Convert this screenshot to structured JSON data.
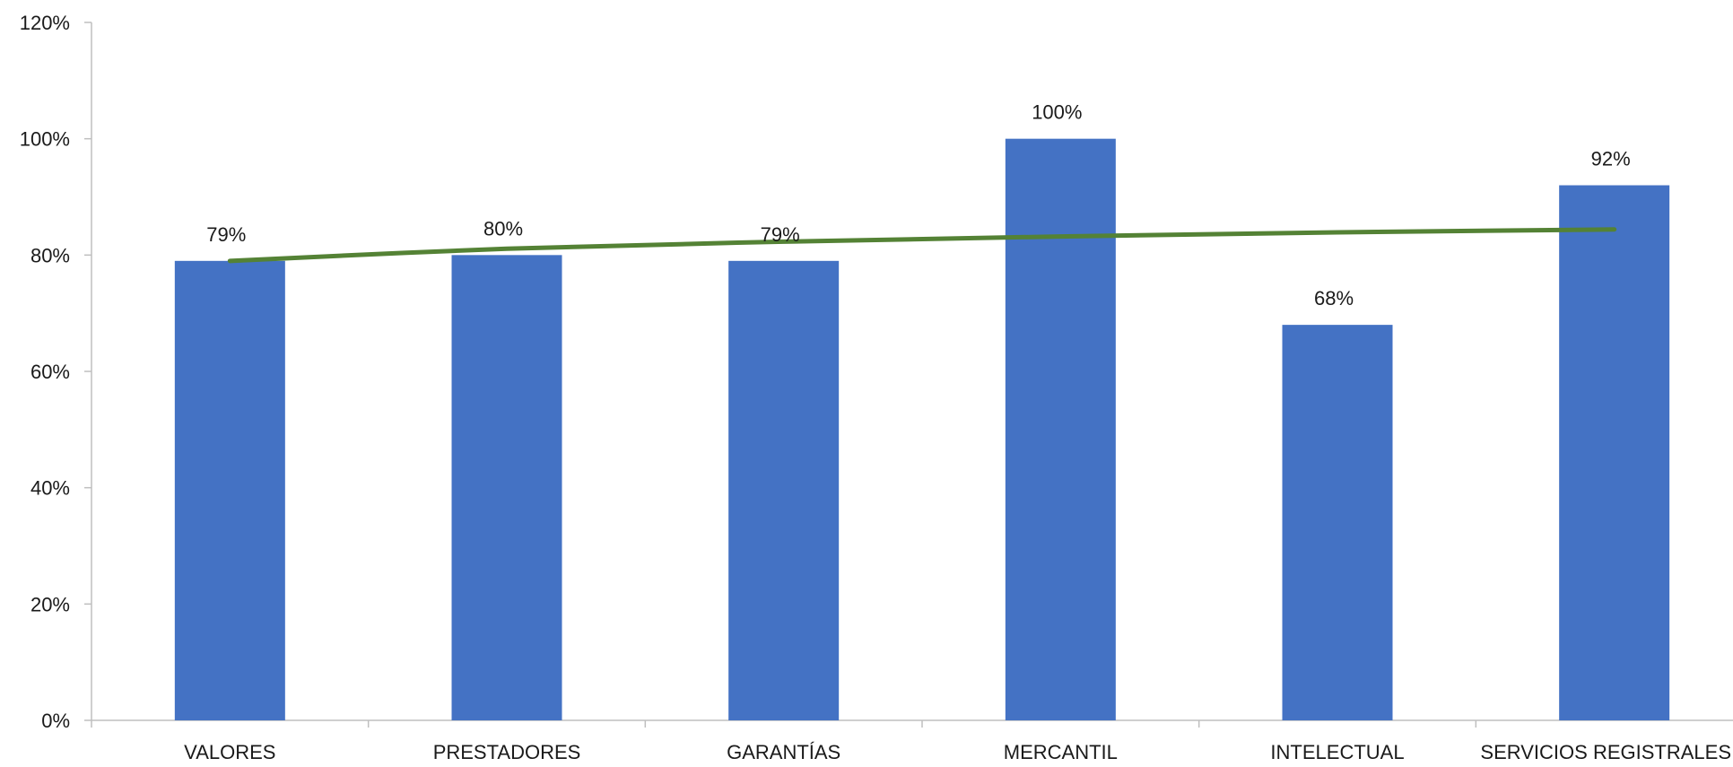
{
  "chart_data": {
    "type": "bar",
    "title": "",
    "xlabel": "",
    "ylabel": "",
    "categories": [
      "VALORES",
      "PRESTADORES",
      "GARANTÍAS",
      "MERCANTIL",
      "INTELECTUAL",
      "SERVICIOS REGISTRALES"
    ],
    "series": [
      {
        "values": [
          79,
          80,
          79,
          100,
          68,
          92
        ],
        "data_labels": [
          "79%",
          "80%",
          "79%",
          "100%",
          "68%",
          "92%"
        ],
        "color": "#4472C4"
      }
    ],
    "trendline": {
      "type": "logarithmic",
      "color": "#548235",
      "values": [
        79,
        81.1,
        82.3,
        83.2,
        83.9,
        84.4
      ]
    },
    "ylim": [
      0,
      120
    ],
    "yticks": [
      0,
      20,
      40,
      60,
      80,
      100,
      120
    ],
    "ytick_labels": [
      "0%",
      "20%",
      "40%",
      "60%",
      "80%",
      "100%",
      "120%"
    ],
    "grid": false,
    "legend": "none"
  }
}
